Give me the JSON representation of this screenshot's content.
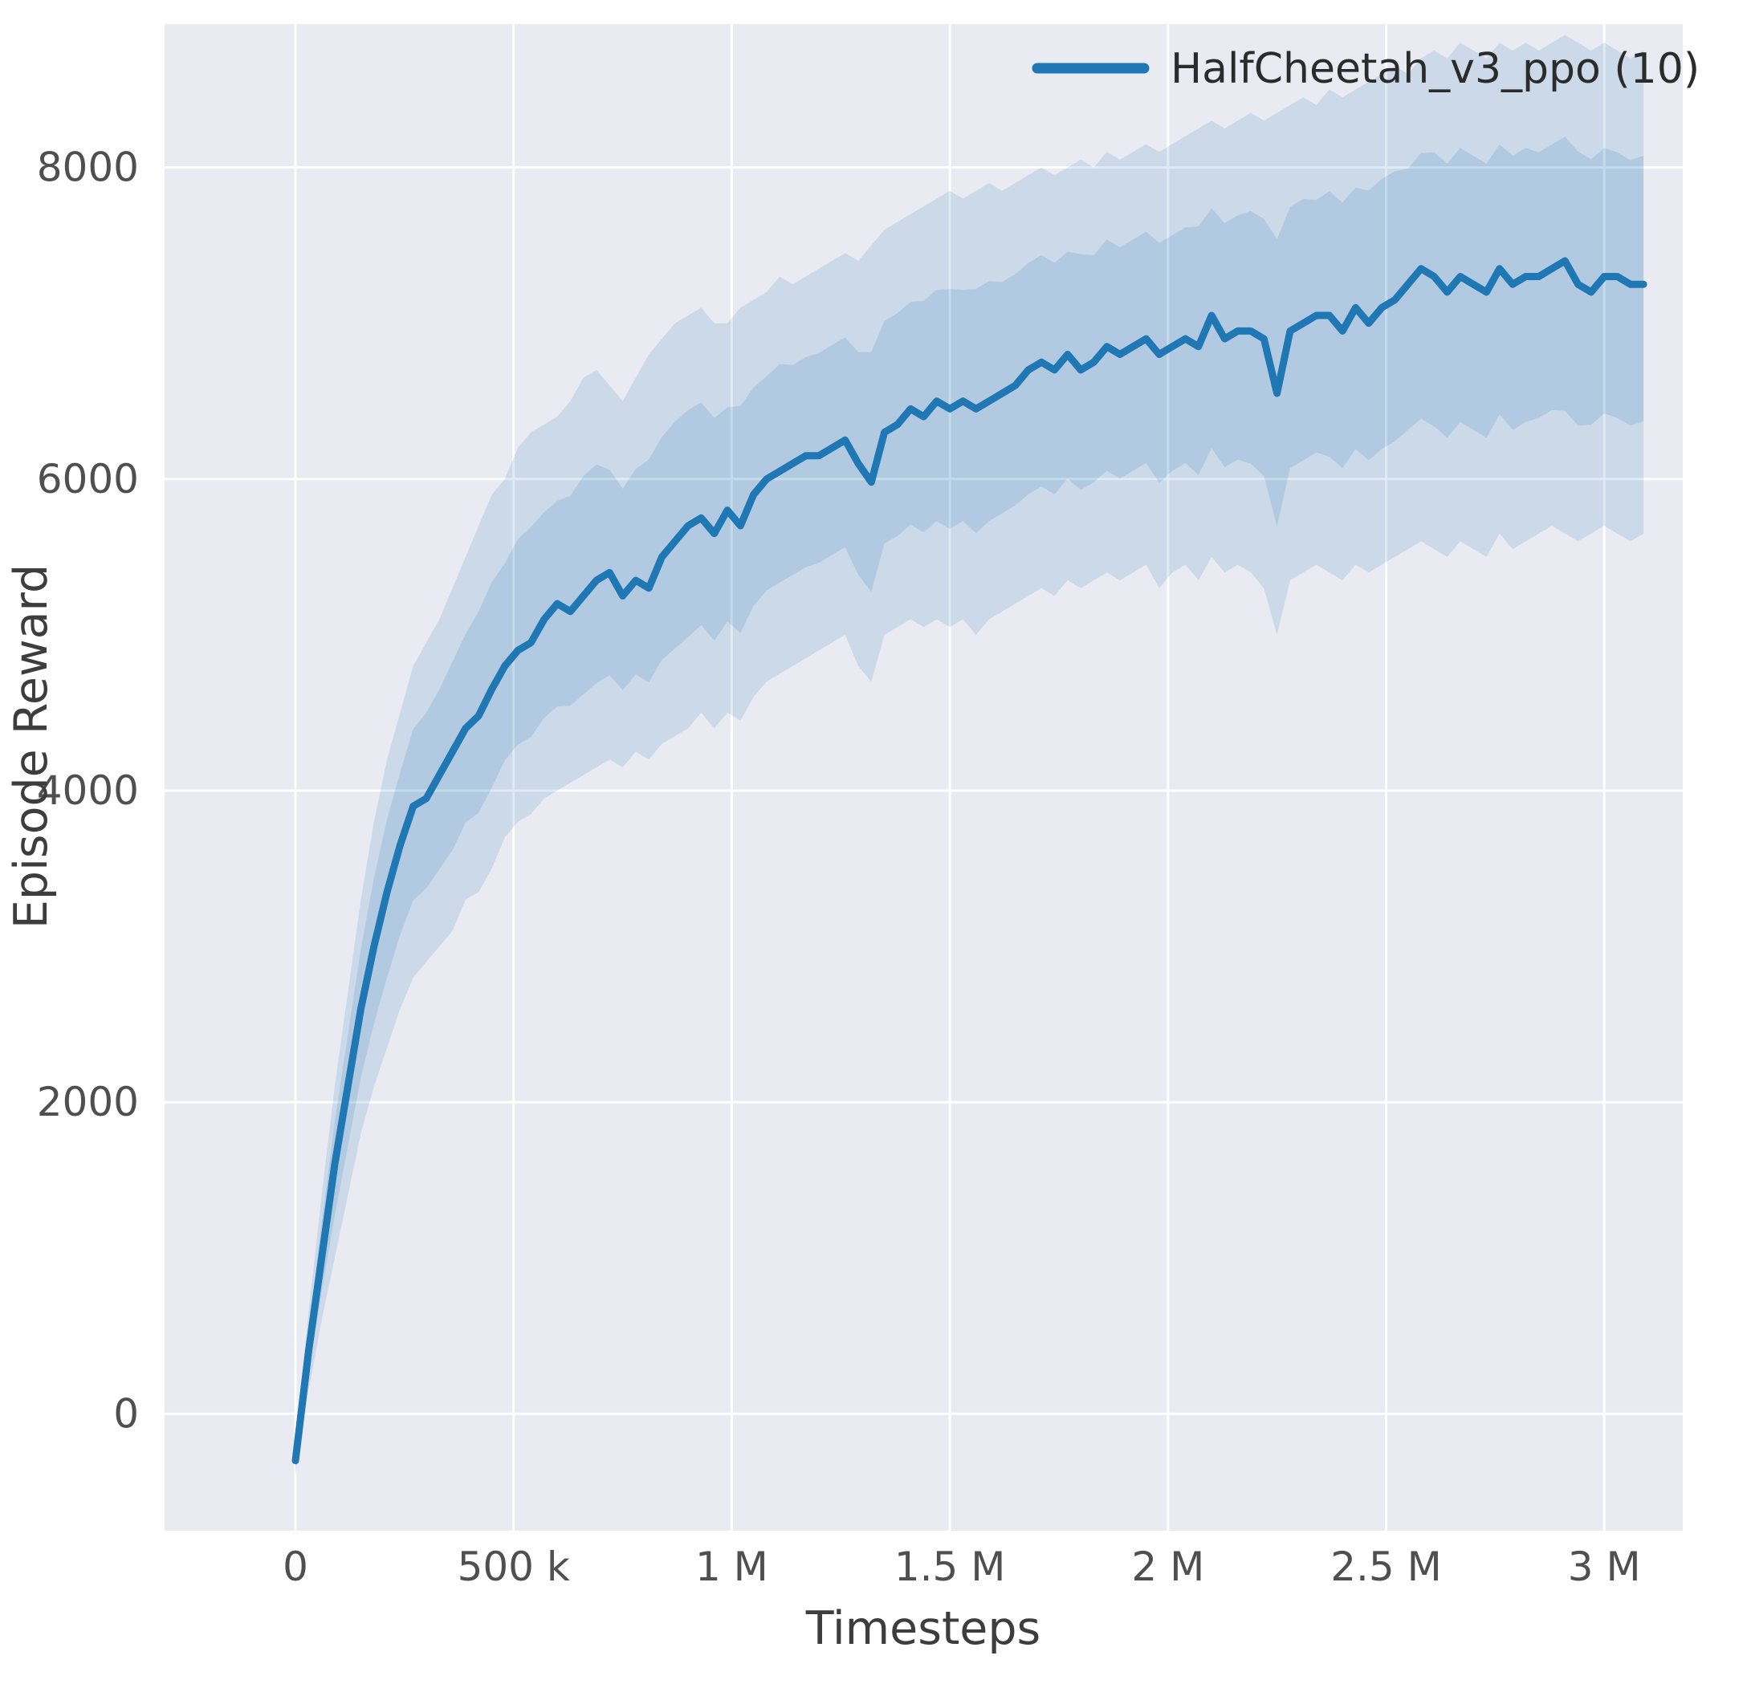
{
  "chart_data": {
    "type": "line",
    "title": "",
    "xlabel": "Timesteps",
    "ylabel": "Episode Reward",
    "legend_position": "upper right",
    "grid": true,
    "plot_background": "#eaeaf2",
    "gridline_color": "#ffffff",
    "line_color": "#1f77b4",
    "band_color": "#1f77b4",
    "band_opacity": 0.15,
    "inner_band_fraction": 0.55,
    "x_unit": "timesteps (thousands)",
    "xlim": [
      -300,
      3180
    ],
    "ylim": [
      -750,
      8920
    ],
    "x_ticks": [
      {
        "value": 0,
        "label": "0"
      },
      {
        "value": 500,
        "label": "500 k"
      },
      {
        "value": 1000,
        "label": "1 M"
      },
      {
        "value": 1500,
        "label": "1.5 M"
      },
      {
        "value": 2000,
        "label": "2 M"
      },
      {
        "value": 2500,
        "label": "2.5 M"
      },
      {
        "value": 3000,
        "label": "3 M"
      }
    ],
    "y_ticks": [
      {
        "value": 0,
        "label": "0"
      },
      {
        "value": 2000,
        "label": "2000"
      },
      {
        "value": 4000,
        "label": "4000"
      },
      {
        "value": 6000,
        "label": "6000"
      },
      {
        "value": 8000,
        "label": "8000"
      }
    ],
    "legend": [
      {
        "label": "HalfCheetah_v3_ppo (10)",
        "color": "#1f77b4"
      }
    ],
    "series": [
      {
        "name": "HalfCheetah_v3_ppo (10)",
        "x": [
          0,
          30,
          60,
          90,
          120,
          150,
          180,
          210,
          240,
          270,
          300,
          330,
          360,
          390,
          420,
          450,
          480,
          510,
          540,
          570,
          600,
          630,
          660,
          690,
          720,
          750,
          780,
          810,
          840,
          870,
          900,
          930,
          960,
          990,
          1020,
          1050,
          1080,
          1110,
          1140,
          1170,
          1200,
          1230,
          1260,
          1290,
          1320,
          1350,
          1380,
          1410,
          1440,
          1470,
          1500,
          1530,
          1560,
          1590,
          1620,
          1650,
          1680,
          1710,
          1740,
          1770,
          1800,
          1830,
          1860,
          1890,
          1920,
          1950,
          1980,
          2010,
          2040,
          2070,
          2100,
          2130,
          2160,
          2190,
          2220,
          2250,
          2280,
          2310,
          2340,
          2370,
          2400,
          2430,
          2460,
          2490,
          2520,
          2550,
          2580,
          2610,
          2640,
          2670,
          2700,
          2730,
          2760,
          2790,
          2820,
          2850,
          2880,
          2910,
          2940,
          2970,
          3000,
          3030,
          3060,
          3090
        ],
        "mean": [
          -300,
          400,
          1000,
          1600,
          2100,
          2600,
          3000,
          3350,
          3650,
          3900,
          3950,
          4100,
          4250,
          4400,
          4480,
          4650,
          4800,
          4900,
          4950,
          5100,
          5200,
          5150,
          5250,
          5350,
          5400,
          5250,
          5350,
          5300,
          5500,
          5600,
          5700,
          5750,
          5650,
          5800,
          5700,
          5900,
          6000,
          6050,
          6100,
          6150,
          6150,
          6200,
          6250,
          6100,
          5980,
          6300,
          6350,
          6450,
          6400,
          6500,
          6450,
          6500,
          6450,
          6500,
          6550,
          6600,
          6700,
          6750,
          6700,
          6800,
          6700,
          6750,
          6850,
          6800,
          6850,
          6900,
          6800,
          6850,
          6900,
          6850,
          7050,
          6900,
          6950,
          6950,
          6900,
          6550,
          6950,
          7000,
          7050,
          7050,
          6950,
          7100,
          7000,
          7100,
          7150,
          7250,
          7350,
          7300,
          7200,
          7300,
          7250,
          7200,
          7350,
          7250,
          7300,
          7300,
          7350,
          7400,
          7250,
          7200,
          7300,
          7300,
          7250,
          7250
        ],
        "lower": [
          -400,
          150,
          600,
          1000,
          1400,
          1800,
          2100,
          2350,
          2600,
          2800,
          2900,
          3000,
          3100,
          3300,
          3350,
          3500,
          3700,
          3800,
          3850,
          3950,
          4000,
          4050,
          4100,
          4150,
          4200,
          4150,
          4250,
          4200,
          4300,
          4350,
          4400,
          4500,
          4400,
          4500,
          4450,
          4600,
          4700,
          4750,
          4800,
          4850,
          4900,
          4950,
          5000,
          4800,
          4700,
          5000,
          5050,
          5100,
          5050,
          5100,
          5050,
          5100,
          5000,
          5100,
          5150,
          5200,
          5250,
          5300,
          5250,
          5350,
          5300,
          5350,
          5400,
          5350,
          5400,
          5450,
          5300,
          5400,
          5450,
          5350,
          5500,
          5400,
          5450,
          5400,
          5300,
          5000,
          5350,
          5400,
          5450,
          5400,
          5350,
          5450,
          5400,
          5450,
          5500,
          5550,
          5600,
          5550,
          5500,
          5600,
          5550,
          5500,
          5650,
          5550,
          5600,
          5650,
          5700,
          5650,
          5600,
          5650,
          5700,
          5650,
          5600,
          5650
        ],
        "upper": [
          -200,
          650,
          1400,
          2100,
          2700,
          3300,
          3800,
          4200,
          4500,
          4800,
          4950,
          5100,
          5300,
          5500,
          5700,
          5900,
          6000,
          6200,
          6300,
          6350,
          6400,
          6500,
          6650,
          6700,
          6600,
          6500,
          6650,
          6800,
          6900,
          7000,
          7050,
          7100,
          7000,
          7000,
          7100,
          7150,
          7200,
          7300,
          7250,
          7300,
          7350,
          7400,
          7450,
          7400,
          7500,
          7600,
          7650,
          7700,
          7750,
          7800,
          7850,
          7800,
          7850,
          7900,
          7850,
          7900,
          7950,
          8000,
          7950,
          8000,
          8050,
          8000,
          8100,
          8050,
          8100,
          8150,
          8100,
          8150,
          8200,
          8250,
          8300,
          8250,
          8300,
          8350,
          8300,
          8350,
          8400,
          8450,
          8400,
          8500,
          8450,
          8500,
          8550,
          8600,
          8650,
          8600,
          8700,
          8750,
          8700,
          8800,
          8750,
          8700,
          8800,
          8750,
          8800,
          8750,
          8800,
          8850,
          8800,
          8750,
          8800,
          8750,
          8700,
          8750
        ]
      }
    ]
  }
}
